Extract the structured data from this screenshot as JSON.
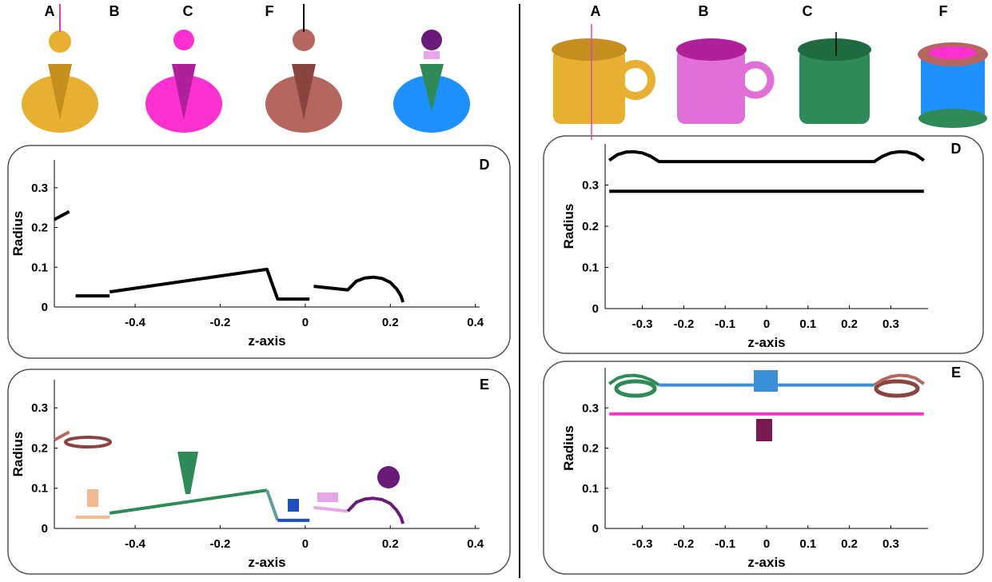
{
  "top_labels": {
    "left": [
      "A",
      "B",
      "C",
      "F"
    ],
    "right": [
      "A",
      "B",
      "C",
      "F"
    ]
  },
  "chart_data": [
    {
      "type": "line",
      "panel_label": "D",
      "xlabel": "z-axis",
      "ylabel": "Radius",
      "xlim": [
        -0.59,
        0.41
      ],
      "ylim": [
        0,
        0.37
      ],
      "xticks": [
        -0.4,
        -0.2,
        0,
        0.2,
        0.4
      ],
      "yticks": [
        0,
        0.1,
        0.2,
        0.3
      ],
      "series": [
        {
          "color": "#000000",
          "x": [
            -0.59,
            -0.555,
            null,
            -0.54,
            -0.46,
            null,
            -0.46,
            -0.09,
            -0.065,
            0.01,
            null,
            0.02,
            0.1,
            0.12,
            0.14,
            0.16,
            0.18,
            0.2,
            0.215,
            0.225,
            0.23
          ],
          "values": [
            0.22,
            0.24,
            null,
            0.028,
            0.028,
            null,
            0.038,
            0.095,
            0.02,
            0.02,
            null,
            0.052,
            0.043,
            0.065,
            0.073,
            0.075,
            0.072,
            0.062,
            0.045,
            0.028,
            0.012
          ]
        }
      ]
    },
    {
      "type": "line",
      "panel_label": "E",
      "xlabel": "z-axis",
      "ylabel": "Radius",
      "xlim": [
        -0.59,
        0.41
      ],
      "ylim": [
        0,
        0.37
      ],
      "xticks": [
        -0.4,
        -0.2,
        0,
        0.2,
        0.4
      ],
      "yticks": [
        0,
        0.1,
        0.2,
        0.3
      ],
      "series": [
        {
          "color": "#b5665f",
          "x": [
            -0.59,
            -0.555
          ],
          "values": [
            0.22,
            0.24
          ]
        },
        {
          "color": "#f2b98f",
          "x": [
            -0.54,
            -0.46
          ],
          "values": [
            0.028,
            0.028
          ]
        },
        {
          "color": "#2e8b57",
          "x": [
            -0.46,
            -0.09
          ],
          "values": [
            0.038,
            0.095
          ]
        },
        {
          "color": "#5f9ea0",
          "x": [
            -0.09,
            -0.065
          ],
          "values": [
            0.095,
            0.02
          ]
        },
        {
          "color": "#1f4fc0",
          "x": [
            -0.065,
            0.01
          ],
          "values": [
            0.02,
            0.02
          ]
        },
        {
          "color": "#e6a7e6",
          "x": [
            0.02,
            0.1
          ],
          "values": [
            0.052,
            0.043
          ]
        },
        {
          "color": "#6a1b7a",
          "x": [
            0.1,
            0.12,
            0.14,
            0.16,
            0.18,
            0.2,
            0.215,
            0.225,
            0.23
          ],
          "values": [
            0.043,
            0.065,
            0.073,
            0.075,
            0.072,
            0.062,
            0.045,
            0.028,
            0.012
          ]
        }
      ]
    },
    {
      "type": "line",
      "panel_label": "D",
      "xlabel": "z-axis",
      "ylabel": "Radius",
      "xlim": [
        -0.39,
        0.39
      ],
      "ylim": [
        0,
        0.4
      ],
      "xticks": [
        -0.3,
        -0.2,
        -0.1,
        0,
        0.1,
        0.2,
        0.3
      ],
      "yticks": [
        0,
        0.1,
        0.2,
        0.3
      ],
      "series": [
        {
          "color": "#000000",
          "x": [
            -0.38,
            -0.36,
            -0.34,
            -0.32,
            -0.3,
            -0.28,
            -0.26,
            0.26,
            0.28,
            0.3,
            0.32,
            0.34,
            0.36,
            0.38
          ],
          "values": [
            0.36,
            0.374,
            0.38,
            0.381,
            0.378,
            0.37,
            0.357,
            0.357,
            0.37,
            0.378,
            0.381,
            0.38,
            0.374,
            0.36
          ]
        },
        {
          "color": "#000000",
          "x": [
            -0.38,
            0.38
          ],
          "values": [
            0.285,
            0.285
          ]
        }
      ]
    },
    {
      "type": "line",
      "panel_label": "E",
      "xlabel": "z-axis",
      "ylabel": "Radius",
      "xlim": [
        -0.39,
        0.39
      ],
      "ylim": [
        0,
        0.4
      ],
      "xticks": [
        -0.3,
        -0.2,
        -0.1,
        0,
        0.1,
        0.2,
        0.3
      ],
      "yticks": [
        0,
        0.1,
        0.2,
        0.3
      ],
      "series": [
        {
          "color": "#2e8b57",
          "x": [
            -0.38,
            -0.36,
            -0.34,
            -0.32,
            -0.3,
            -0.28,
            -0.26
          ],
          "values": [
            0.36,
            0.374,
            0.38,
            0.381,
            0.378,
            0.37,
            0.357
          ]
        },
        {
          "color": "#3a8fd8",
          "x": [
            -0.26,
            0.26
          ],
          "values": [
            0.357,
            0.357
          ]
        },
        {
          "color": "#b5665f",
          "x": [
            0.26,
            0.28,
            0.3,
            0.32,
            0.34,
            0.36,
            0.38
          ],
          "values": [
            0.357,
            0.37,
            0.378,
            0.381,
            0.38,
            0.374,
            0.36
          ]
        },
        {
          "color": "#ff33cc",
          "x": [
            -0.38,
            0.38
          ],
          "values": [
            0.285,
            0.285
          ]
        }
      ]
    }
  ]
}
